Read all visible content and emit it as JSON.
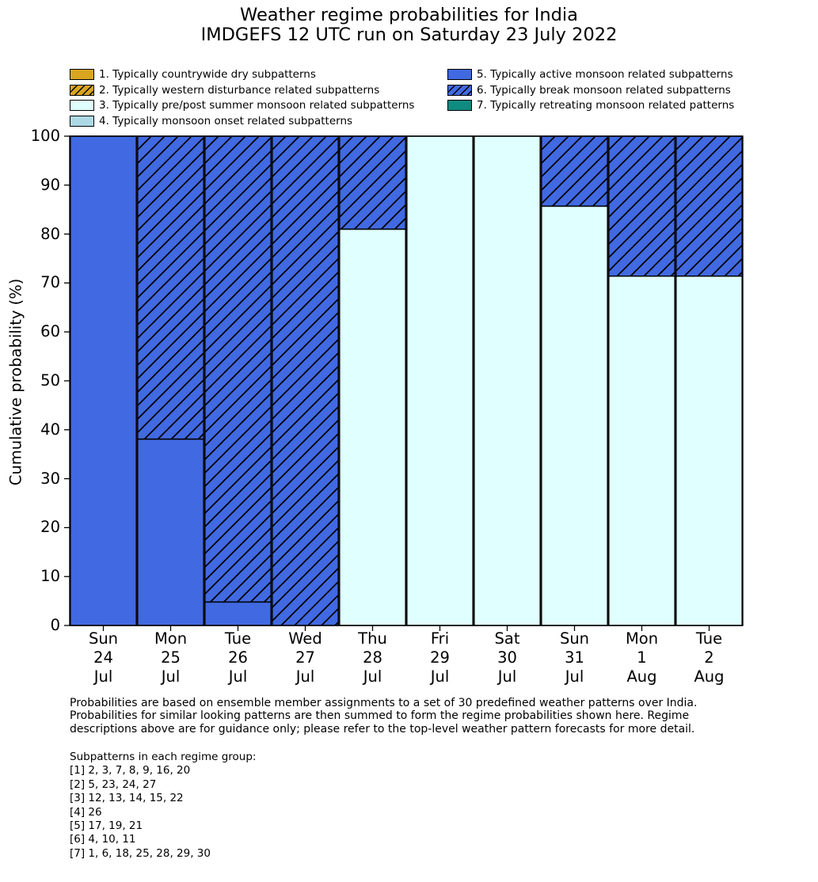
{
  "title": {
    "line1": "Weather regime probabilities for India",
    "line2": "IMDGEFS 12 UTC run on Saturday 23 July 2022"
  },
  "legend": {
    "items": [
      {
        "label": "1. Typically countrywide dry subpatterns",
        "color": "#d9a521",
        "hatch": false
      },
      {
        "label": "2. Typically western disturbance related subpatterns",
        "color": "#d9a521",
        "hatch": true
      },
      {
        "label": "3. Typically pre/post summer monsoon related subpatterns",
        "color": "#e0ffff",
        "hatch": false
      },
      {
        "label": "4. Typically monsoon onset related subpatterns",
        "color": "#add8e6",
        "hatch": false
      },
      {
        "label": "5. Typically active monsoon related subpatterns",
        "color": "#4169e1",
        "hatch": false
      },
      {
        "label": "6. Typically break monsoon related subpatterns",
        "color": "#4169e1",
        "hatch": true
      },
      {
        "label": "7. Typically retreating monsoon related patterns",
        "color": "#108b80",
        "hatch": false
      }
    ]
  },
  "chart_data": {
    "type": "bar",
    "stacked": true,
    "title": "Weather regime probabilities for India",
    "subtitle": "IMDGEFS 12 UTC run on Saturday 23 July 2022",
    "xlabel": "",
    "ylabel": "Cumulative probability (%)",
    "ylim": [
      0,
      100
    ],
    "yticks": [
      0,
      10,
      20,
      30,
      40,
      50,
      60,
      70,
      80,
      90,
      100
    ],
    "grid": false,
    "legend_position": "above plot, two columns",
    "categories": [
      "Sun 24 Jul",
      "Mon 25 Jul",
      "Tue 26 Jul",
      "Wed 27 Jul",
      "Thu 28 Jul",
      "Fri 29 Jul",
      "Sat 30 Jul",
      "Sun 31 Jul",
      "Mon 1 Aug",
      "Tue 2 Aug"
    ],
    "category_lines": [
      [
        "Sun",
        "24",
        "Jul"
      ],
      [
        "Mon",
        "25",
        "Jul"
      ],
      [
        "Tue",
        "26",
        "Jul"
      ],
      [
        "Wed",
        "27",
        "Jul"
      ],
      [
        "Thu",
        "28",
        "Jul"
      ],
      [
        "Fri",
        "29",
        "Jul"
      ],
      [
        "Sat",
        "30",
        "Jul"
      ],
      [
        "Sun",
        "31",
        "Jul"
      ],
      [
        "Mon",
        "1",
        "Aug"
      ],
      [
        "Tue",
        "2",
        "Aug"
      ]
    ],
    "series": [
      {
        "name": "3. Typically pre/post summer monsoon related subpatterns",
        "color": "#e0ffff",
        "hatch": false,
        "values": [
          0,
          0,
          0,
          0,
          81.0,
          100.0,
          100.0,
          85.7,
          71.4,
          71.4
        ]
      },
      {
        "name": "5. Typically active monsoon related subpatterns",
        "color": "#4169e1",
        "hatch": false,
        "values": [
          100.0,
          38.1,
          4.8,
          0,
          0,
          0,
          0,
          0,
          0,
          0
        ]
      },
      {
        "name": "6. Typically break monsoon related subpatterns",
        "color": "#4169e1",
        "hatch": true,
        "values": [
          0,
          61.9,
          95.2,
          100.0,
          19.0,
          0,
          0,
          14.3,
          28.6,
          28.6
        ]
      }
    ]
  },
  "footer": {
    "paragraph_lines": [
      "Probabilities are based on ensemble member assignments to a set of 30 predefined weather patterns over India.",
      "Probabilities for similar looking patterns are then summed to form the regime probabilities shown here. Regime",
      "descriptions above are for guidance only; please refer to the top-level weather pattern forecasts for more detail."
    ],
    "subpatterns_title": "Subpatterns in each regime group:",
    "subpatterns": [
      "[1] 2, 3, 7, 8, 9, 16, 20",
      "[2] 5, 23, 24, 27",
      "[3] 12, 13, 14, 15, 22",
      "[4] 26",
      "[5] 17, 19, 21",
      "[6] 4, 10, 11",
      "[7] 1, 6, 18, 25, 28, 29, 30"
    ]
  }
}
